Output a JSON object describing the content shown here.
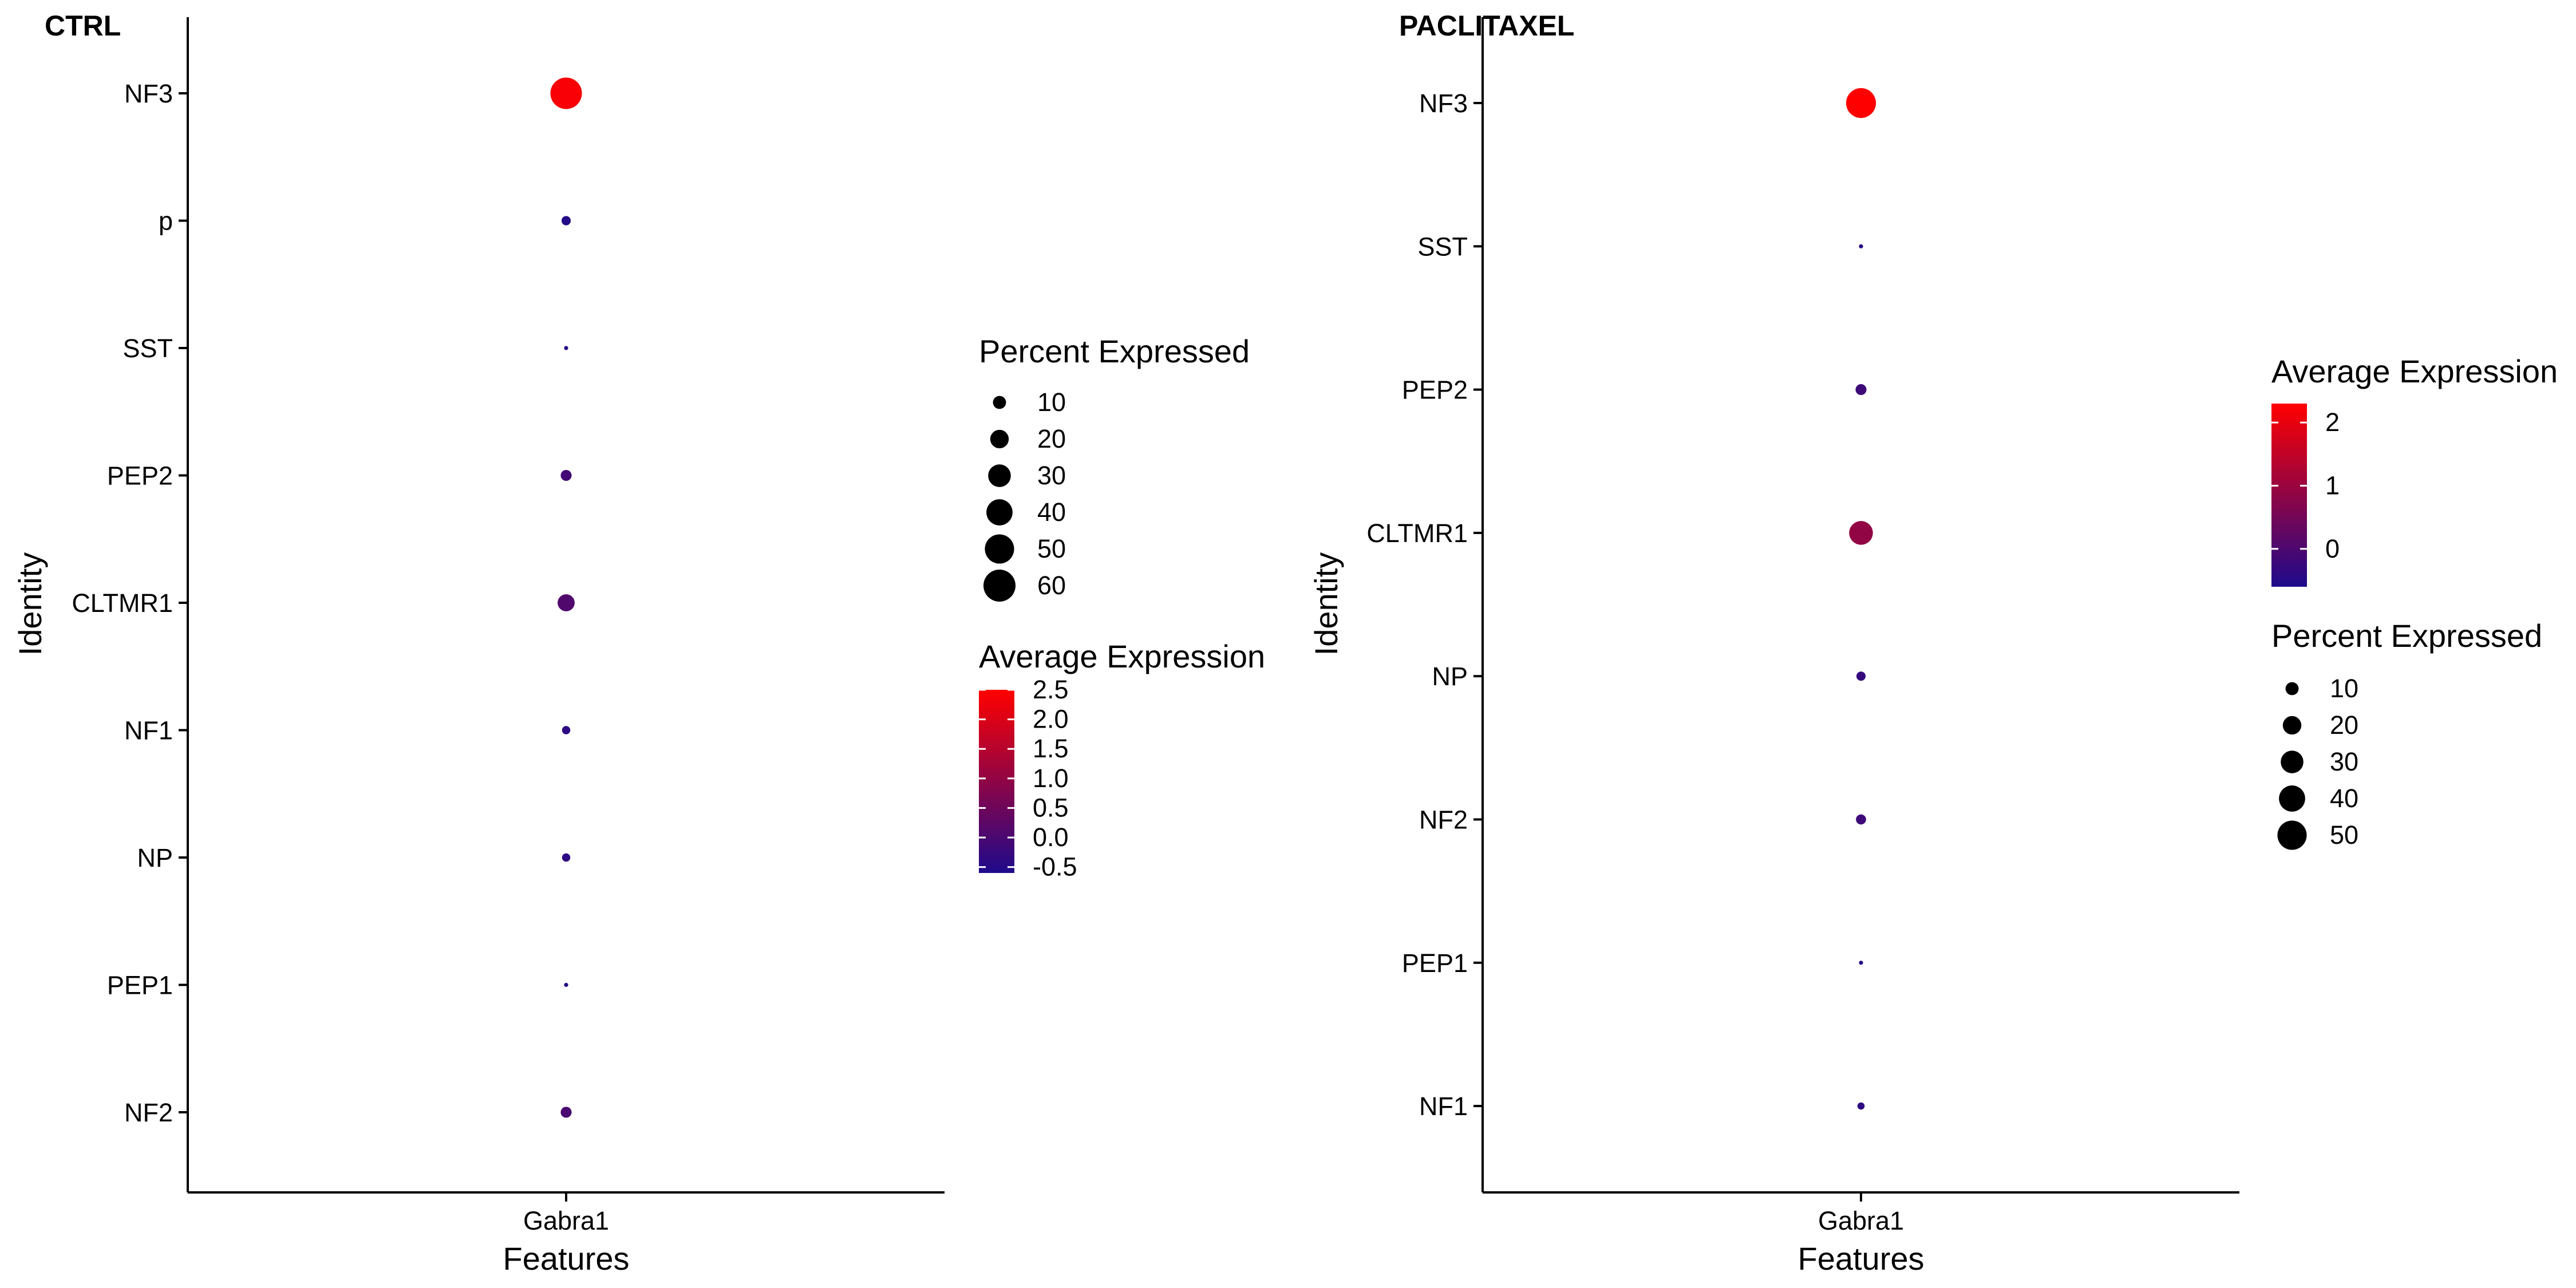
{
  "chart_data": [
    {
      "type": "dotplot",
      "title": "CTRL",
      "xlabel": "Features",
      "ylabel": "Identity",
      "x_categories": [
        "Gabra1"
      ],
      "y_categories": [
        "NF3",
        "p",
        "SST",
        "PEP2",
        "CLTMR1",
        "NF1",
        "NP",
        "PEP1",
        "NF2"
      ],
      "points": [
        {
          "feature": "Gabra1",
          "identity": "NF3",
          "avg_exp": 2.4,
          "pct_exp": 58
        },
        {
          "feature": "Gabra1",
          "identity": "p",
          "avg_exp": -0.5,
          "pct_exp": 5
        },
        {
          "feature": "Gabra1",
          "identity": "SST",
          "avg_exp": -0.5,
          "pct_exp": 1
        },
        {
          "feature": "Gabra1",
          "identity": "PEP2",
          "avg_exp": -0.1,
          "pct_exp": 7
        },
        {
          "feature": "Gabra1",
          "identity": "CLTMR1",
          "avg_exp": 0.1,
          "pct_exp": 17
        },
        {
          "feature": "Gabra1",
          "identity": "NF1",
          "avg_exp": -0.4,
          "pct_exp": 4
        },
        {
          "feature": "Gabra1",
          "identity": "NP",
          "avg_exp": -0.4,
          "pct_exp": 4
        },
        {
          "feature": "Gabra1",
          "identity": "PEP1",
          "avg_exp": -0.5,
          "pct_exp": 1
        },
        {
          "feature": "Gabra1",
          "identity": "NF2",
          "avg_exp": 0.0,
          "pct_exp": 7
        }
      ],
      "color_scale": {
        "low": "#1e0a8c",
        "high": "#ff0000",
        "range": [
          -0.6,
          2.5
        ],
        "ticks": [
          "2.5",
          "2.0",
          "1.5",
          "1.0",
          "0.5",
          "0.0",
          "-0.5"
        ],
        "tick_values": [
          2.5,
          2.0,
          1.5,
          1.0,
          0.5,
          0.0,
          -0.5
        ]
      },
      "size_scale": {
        "max_pct": 60,
        "ticks": [
          "10",
          "20",
          "30",
          "40",
          "50",
          "60"
        ],
        "tick_values": [
          10,
          20,
          30,
          40,
          50,
          60
        ]
      },
      "legend_titles": {
        "size": "Percent Expressed",
        "color": "Average Expression"
      },
      "legend_order": [
        "size",
        "color"
      ],
      "legend_position": "right"
    },
    {
      "type": "dotplot",
      "title": "PACLITAXEL",
      "xlabel": "Features",
      "ylabel": "Identity",
      "x_categories": [
        "Gabra1"
      ],
      "y_categories": [
        "NF3",
        "SST",
        "PEP2",
        "CLTMR1",
        "NP",
        "NF2",
        "PEP1",
        "NF1"
      ],
      "points": [
        {
          "feature": "Gabra1",
          "identity": "NF3",
          "avg_exp": 2.3,
          "pct_exp": 52
        },
        {
          "feature": "Gabra1",
          "identity": "SST",
          "avg_exp": -0.5,
          "pct_exp": 1
        },
        {
          "feature": "Gabra1",
          "identity": "PEP2",
          "avg_exp": -0.2,
          "pct_exp": 7
        },
        {
          "feature": "Gabra1",
          "identity": "CLTMR1",
          "avg_exp": 0.9,
          "pct_exp": 33
        },
        {
          "feature": "Gabra1",
          "identity": "NP",
          "avg_exp": -0.3,
          "pct_exp": 5
        },
        {
          "feature": "Gabra1",
          "identity": "NF2",
          "avg_exp": -0.2,
          "pct_exp": 6
        },
        {
          "feature": "Gabra1",
          "identity": "PEP1",
          "avg_exp": -0.5,
          "pct_exp": 1
        },
        {
          "feature": "Gabra1",
          "identity": "NF1",
          "avg_exp": -0.4,
          "pct_exp": 3
        }
      ],
      "color_scale": {
        "low": "#1e0a8c",
        "high": "#ff0000",
        "range": [
          -0.6,
          2.3
        ],
        "ticks": [
          "2",
          "1",
          "0"
        ],
        "tick_values": [
          2,
          1,
          0
        ]
      },
      "size_scale": {
        "max_pct": 60,
        "ticks": [
          "10",
          "20",
          "30",
          "40",
          "50"
        ],
        "tick_values": [
          10,
          20,
          30,
          40,
          50
        ]
      },
      "legend_titles": {
        "color": "Average Expression",
        "size": "Percent Expressed"
      },
      "legend_order": [
        "color",
        "size"
      ],
      "legend_position": "right"
    }
  ]
}
